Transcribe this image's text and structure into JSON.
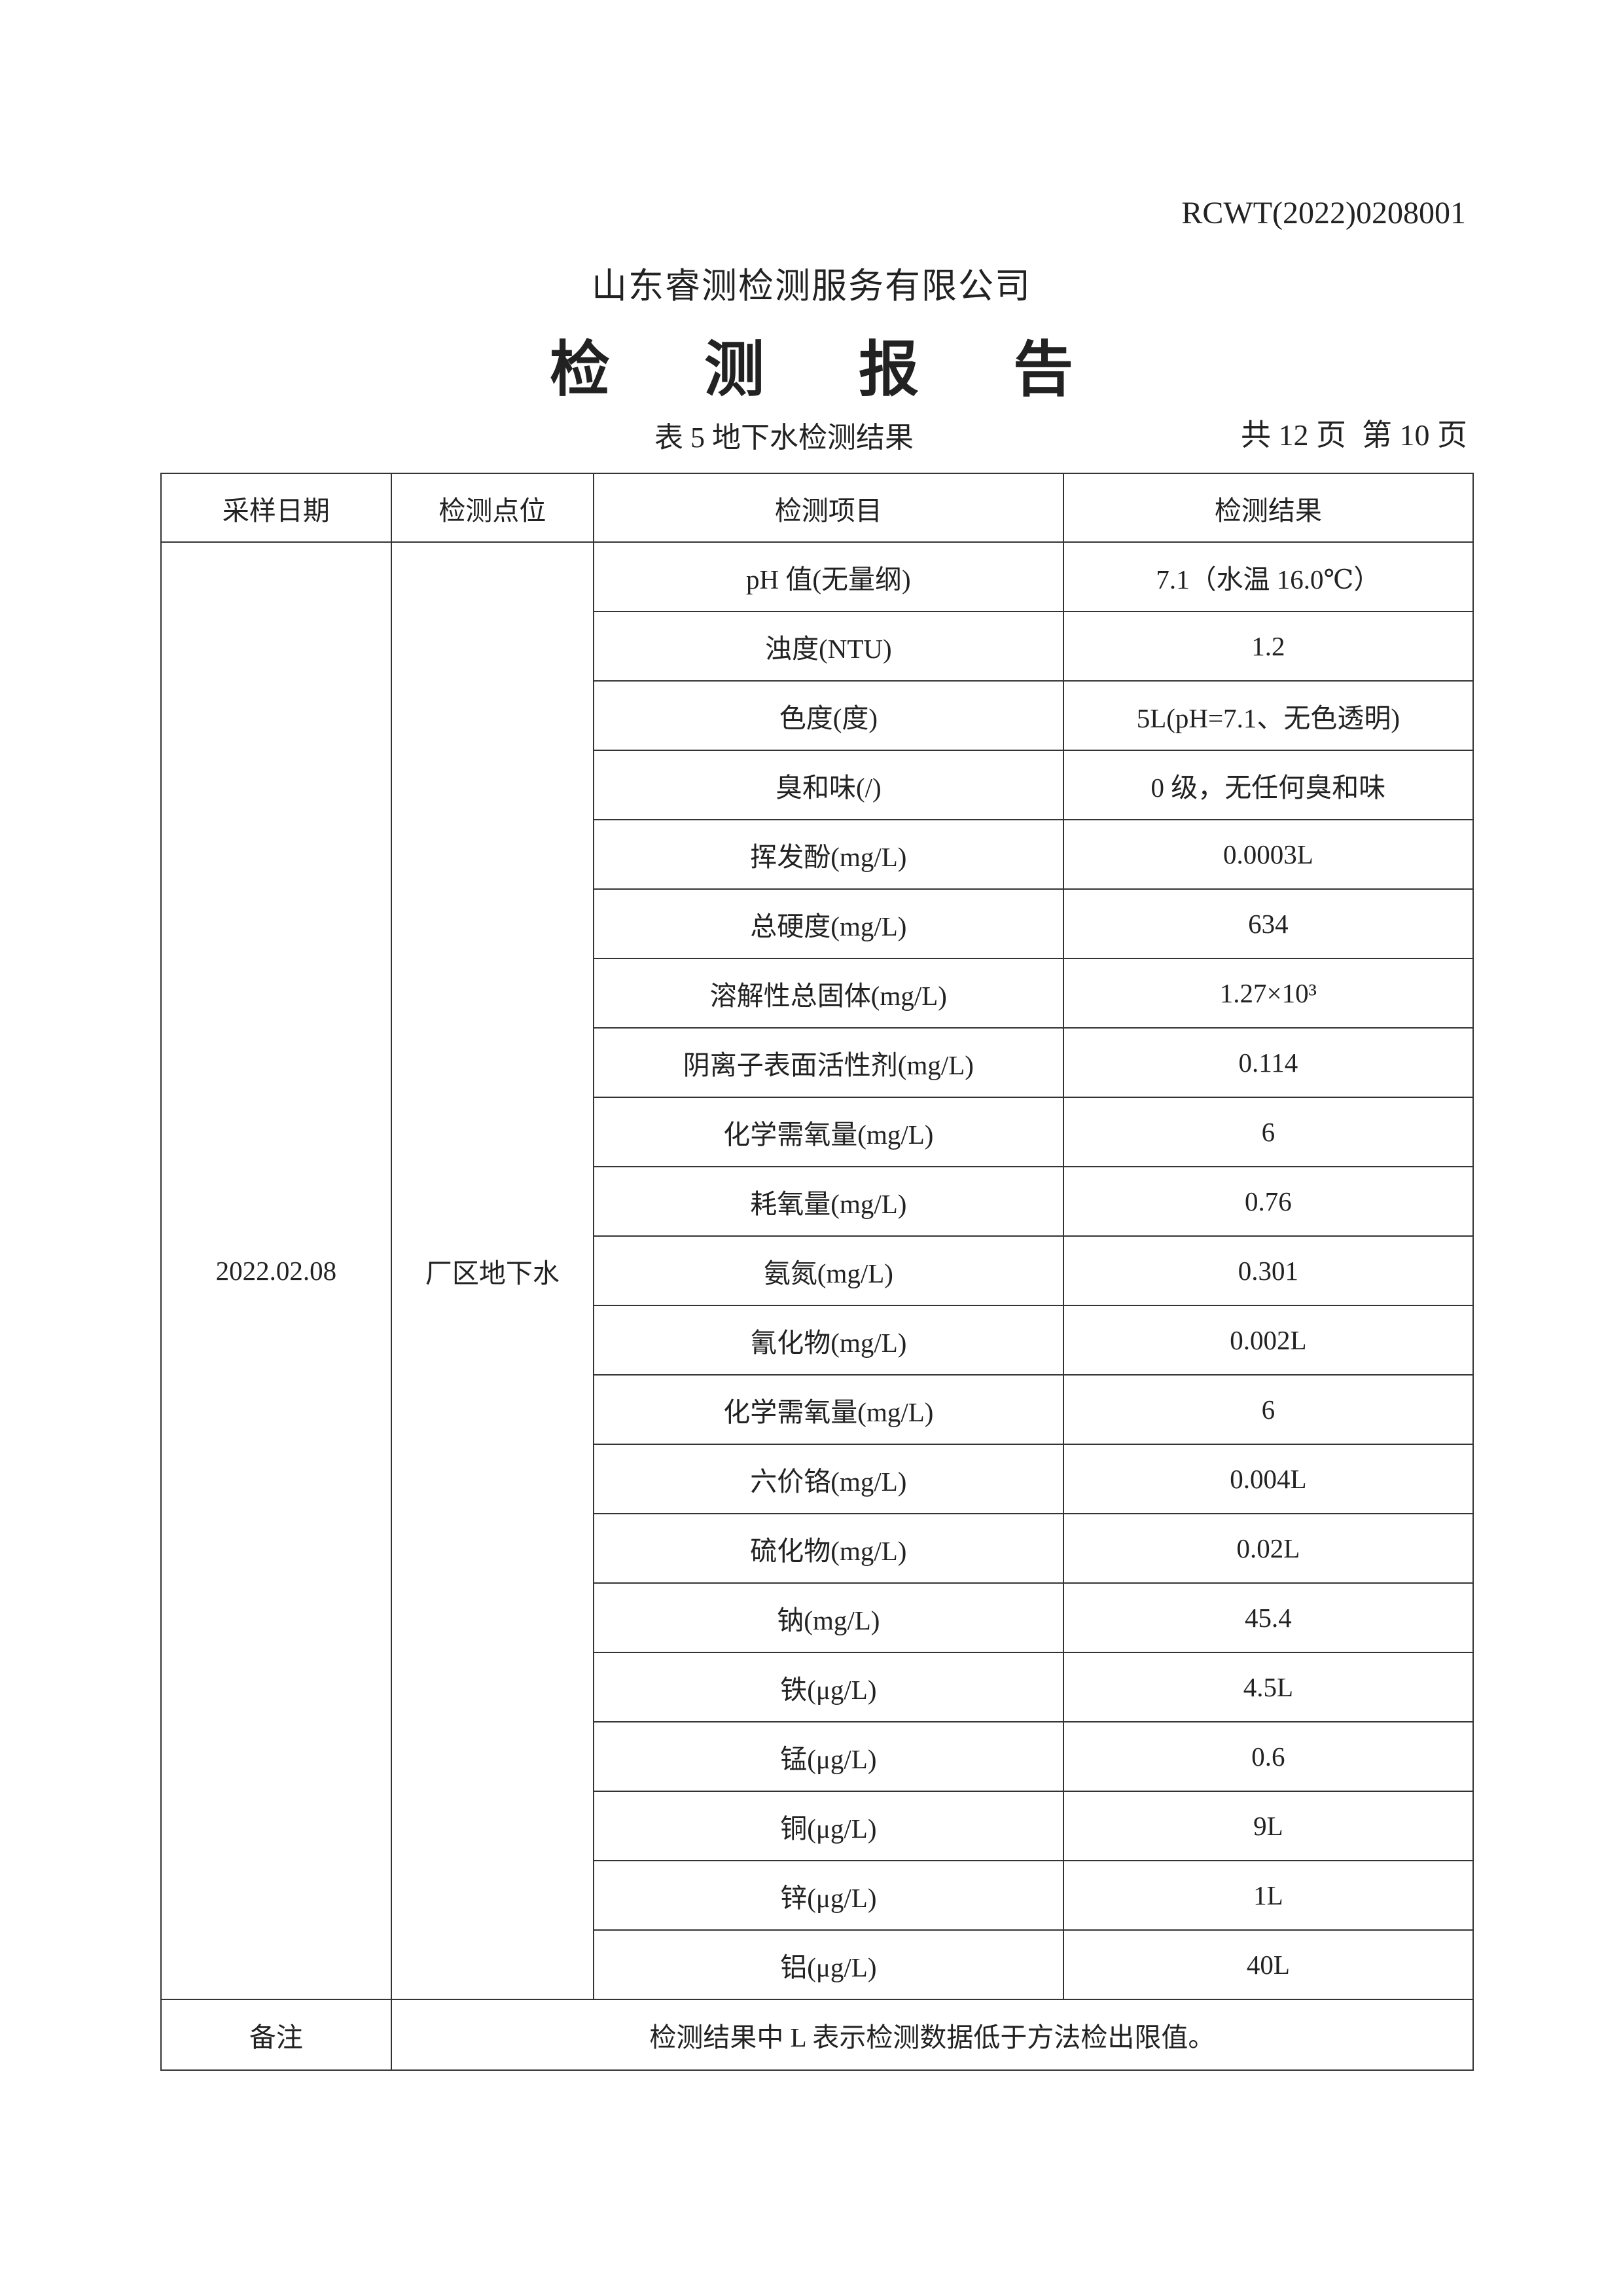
{
  "report_no": "RCWT(2022)0208001",
  "company": "山东睿测检测服务有限公司",
  "title": "检 测 报 告",
  "table_caption": "表 5  地下水检测结果",
  "page_total": "共 12 页",
  "page_current": "第 10 页",
  "headers": [
    "采样日期",
    "检测点位",
    "检测项目",
    "检测结果"
  ],
  "sampling_date": "2022.02.08",
  "location": "厂区地下水",
  "rows": [
    {
      "item": "pH 值(无量纲)",
      "result": "7.1（水温 16.0℃）"
    },
    {
      "item": "浊度(NTU)",
      "result": "1.2"
    },
    {
      "item": "色度(度)",
      "result": "5L(pH=7.1、无色透明)"
    },
    {
      "item": "臭和味(/)",
      "result": "0 级，无任何臭和味"
    },
    {
      "item": "挥发酚(mg/L)",
      "result": "0.0003L"
    },
    {
      "item": "总硬度(mg/L)",
      "result": "634"
    },
    {
      "item": "溶解性总固体(mg/L)",
      "result": "1.27×10³"
    },
    {
      "item": "阴离子表面活性剂(mg/L)",
      "result": "0.114"
    },
    {
      "item": "化学需氧量(mg/L)",
      "result": "6"
    },
    {
      "item": "耗氧量(mg/L)",
      "result": "0.76"
    },
    {
      "item": "氨氮(mg/L)",
      "result": "0.301"
    },
    {
      "item": "氰化物(mg/L)",
      "result": "0.002L"
    },
    {
      "item": "化学需氧量(mg/L)",
      "result": "6"
    },
    {
      "item": "六价铬(mg/L)",
      "result": "0.004L"
    },
    {
      "item": "硫化物(mg/L)",
      "result": "0.02L"
    },
    {
      "item": "钠(mg/L)",
      "result": "45.4"
    },
    {
      "item": "铁(μg/L)",
      "result": "4.5L"
    },
    {
      "item": "锰(μg/L)",
      "result": "0.6"
    },
    {
      "item": "铜(μg/L)",
      "result": "9L"
    },
    {
      "item": "锌(μg/L)",
      "result": "1L"
    },
    {
      "item": "铝(μg/L)",
      "result": "40L"
    }
  ],
  "remark_label": "备注",
  "remark_text": "检测结果中 L 表示检测数据低于方法检出限值。"
}
